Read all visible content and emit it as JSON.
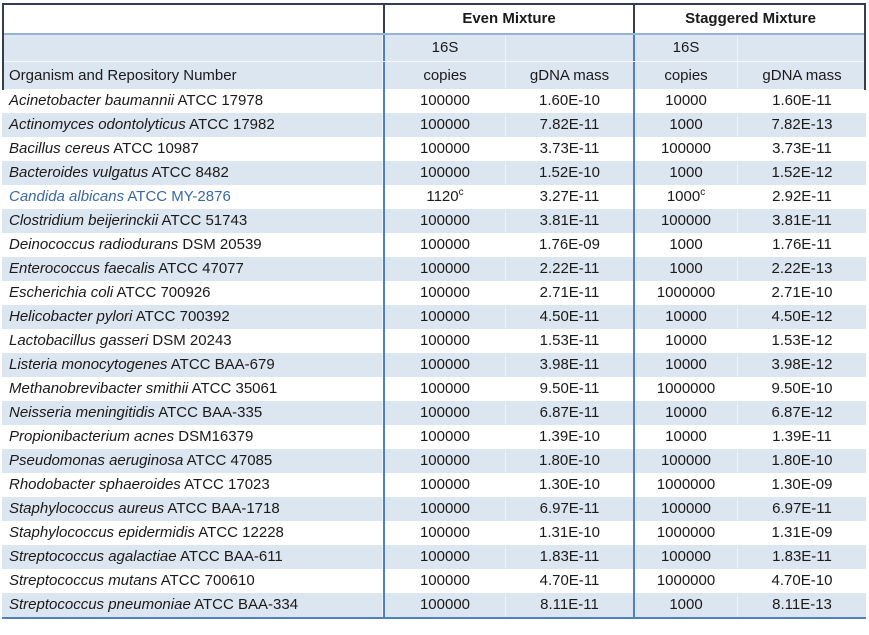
{
  "table": {
    "groups": [
      {
        "label": "Even Mixture"
      },
      {
        "label": "Staggered Mixture"
      }
    ],
    "headers": {
      "organism": "Organism and Repository Number",
      "s16": "16S",
      "copies": "copies",
      "gdna": "gDNA mass"
    },
    "rows": [
      {
        "organism": "Acinetobacter baumannii",
        "repository": "ATCC 17978",
        "even_copies": "100000",
        "even_gdna": "1.60E-10",
        "stag_copies": "10000",
        "stag_gdna": "1.60E-11"
      },
      {
        "organism": "Actinomyces odontolyticus",
        "repository": "ATCC 17982",
        "even_copies": "100000",
        "even_gdna": "7.82E-11",
        "stag_copies": "1000",
        "stag_gdna": "7.82E-13"
      },
      {
        "organism": "Bacillus cereus",
        "repository": "ATCC 10987",
        "even_copies": "100000",
        "even_gdna": "3.73E-11",
        "stag_copies": "100000",
        "stag_gdna": "3.73E-11"
      },
      {
        "organism": "Bacteroides vulgatus",
        "repository": "ATCC 8482",
        "even_copies": "100000",
        "even_gdna": "1.52E-10",
        "stag_copies": "1000",
        "stag_gdna": "1.52E-12"
      },
      {
        "organism": "Candida albicans",
        "repository": "ATCC MY-2876",
        "even_copies": "1120",
        "even_copies_sup": "c",
        "even_gdna": "3.27E-11",
        "stag_copies": "1000",
        "stag_copies_sup": "c",
        "stag_gdna": "2.92E-11",
        "text_color": "#3A69A5"
      },
      {
        "organism": "Clostridium beijerinckii",
        "repository": "ATCC 51743",
        "even_copies": "100000",
        "even_gdna": "3.81E-11",
        "stag_copies": "100000",
        "stag_gdna": "3.81E-11"
      },
      {
        "organism": "Deinococcus radiodurans",
        "repository": "DSM 20539",
        "even_copies": "100000",
        "even_gdna": "1.76E-09",
        "stag_copies": "1000",
        "stag_gdna": "1.76E-11"
      },
      {
        "organism": "Enterococcus faecalis",
        "repository": "ATCC 47077",
        "even_copies": "100000",
        "even_gdna": "2.22E-11",
        "stag_copies": "1000",
        "stag_gdna": "2.22E-13"
      },
      {
        "organism": "Escherichia coli",
        "repository": "ATCC 700926",
        "even_copies": "100000",
        "even_gdna": "2.71E-11",
        "stag_copies": "1000000",
        "stag_gdna": "2.71E-10"
      },
      {
        "organism": "Helicobacter pylori",
        "repository": "ATCC 700392",
        "even_copies": "100000",
        "even_gdna": "4.50E-11",
        "stag_copies": "10000",
        "stag_gdna": "4.50E-12"
      },
      {
        "organism": "Lactobacillus gasseri",
        "repository": "DSM 20243",
        "even_copies": "100000",
        "even_gdna": "1.53E-11",
        "stag_copies": "10000",
        "stag_gdna": "1.53E-12"
      },
      {
        "organism": "Listeria monocytogenes",
        "repository": "ATCC BAA-679",
        "even_copies": "100000",
        "even_gdna": "3.98E-11",
        "stag_copies": "10000",
        "stag_gdna": "3.98E-12"
      },
      {
        "organism": "Methanobrevibacter smithii",
        "repository": "ATCC 35061",
        "even_copies": "100000",
        "even_gdna": "9.50E-11",
        "stag_copies": "1000000",
        "stag_gdna": "9.50E-10"
      },
      {
        "organism": "Neisseria meningitidis",
        "repository": "ATCC BAA-335",
        "even_copies": "100000",
        "even_gdna": "6.87E-11",
        "stag_copies": "10000",
        "stag_gdna": "6.87E-12"
      },
      {
        "organism": "Propionibacterium acnes",
        "repository": "DSM16379",
        "even_copies": "100000",
        "even_gdna": "1.39E-10",
        "stag_copies": "10000",
        "stag_gdna": "1.39E-11"
      },
      {
        "organism": "Pseudomonas aeruginosa",
        "repository": "ATCC 47085",
        "even_copies": "100000",
        "even_gdna": "1.80E-10",
        "stag_copies": "100000",
        "stag_gdna": "1.80E-10"
      },
      {
        "organism": "Rhodobacter sphaeroides",
        "repository": "ATCC 17023",
        "even_copies": "100000",
        "even_gdna": "1.30E-10",
        "stag_copies": "1000000",
        "stag_gdna": "1.30E-09"
      },
      {
        "organism": "Staphylococcus aureus",
        "repository": "ATCC BAA-1718",
        "even_copies": "100000",
        "even_gdna": "6.97E-11",
        "stag_copies": "100000",
        "stag_gdna": "6.97E-11"
      },
      {
        "organism": "Staphylococcus epidermidis",
        "repository": "ATCC 12228",
        "even_copies": "100000",
        "even_gdna": "1.31E-10",
        "stag_copies": "1000000",
        "stag_gdna": "1.31E-09"
      },
      {
        "organism": "Streptococcus agalactiae",
        "repository": "ATCC BAA-611",
        "even_copies": "100000",
        "even_gdna": "1.83E-11",
        "stag_copies": "100000",
        "stag_gdna": "1.83E-11"
      },
      {
        "organism": "Streptococcus mutans",
        "repository": "ATCC 700610",
        "even_copies": "100000",
        "even_gdna": "4.70E-11",
        "stag_copies": "1000000",
        "stag_gdna": "4.70E-10"
      },
      {
        "organism": "Streptococcus pneumoniae",
        "repository": "ATCC BAA-334",
        "even_copies": "100000",
        "even_gdna": "8.11E-11",
        "stag_copies": "1000",
        "stag_gdna": "8.11E-13"
      }
    ]
  },
  "colors": {
    "band_fill": "#DCE6F1",
    "divider_blue": "#4F81BD",
    "header_underline_blue": "#95B3D7",
    "dark_border": "#333F50",
    "candida_text": "#3A69A5"
  }
}
